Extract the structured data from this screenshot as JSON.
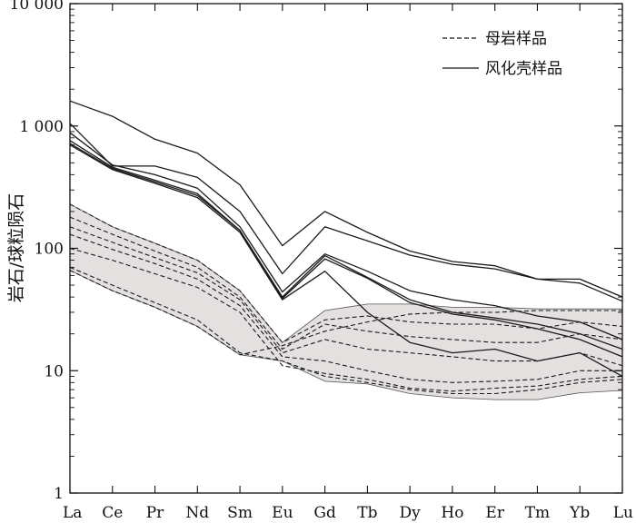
{
  "chart_data": {
    "type": "line",
    "ylabel": "岩石/球粒陨石",
    "xlabel": "",
    "y_scale": "log",
    "ylim": [
      1,
      10000
    ],
    "y_ticks": [
      {
        "value": 1,
        "label": "1"
      },
      {
        "value": 10,
        "label": "10"
      },
      {
        "value": 100,
        "label": "100"
      },
      {
        "value": 1000,
        "label": "1 000"
      },
      {
        "value": 10000,
        "label": "10 000"
      }
    ],
    "categories": [
      "La",
      "Ce",
      "Pr",
      "Nd",
      "Sm",
      "Eu",
      "Gd",
      "Tb",
      "Dy",
      "Ho",
      "Er",
      "Tm",
      "Yb",
      "Lu"
    ],
    "legend": {
      "position": "top-right",
      "entries": [
        {
          "label": "母岩样品",
          "style": "dashed"
        },
        {
          "label": "风化壳样品",
          "style": "solid"
        }
      ]
    },
    "colors": {
      "line": "#1a1a1a",
      "band": "#e4e0e0",
      "band_edge": "#555555"
    },
    "band": {
      "upper": [
        230,
        150,
        110,
        80,
        45,
        17,
        31,
        35,
        35,
        33,
        33,
        32,
        32,
        32
      ],
      "lower": [
        66,
        45,
        33,
        23,
        13.5,
        12,
        8.2,
        7.8,
        6.5,
        6.0,
        5.8,
        5.8,
        6.6,
        6.9
      ]
    },
    "series": [
      {
        "group": "weathered",
        "values": [
          1600,
          1200,
          780,
          600,
          330,
          105,
          200,
          135,
          95,
          78,
          72,
          56,
          56,
          40
        ]
      },
      {
        "group": "weathered",
        "values": [
          1050,
          470,
          470,
          380,
          200,
          62,
          150,
          115,
          88,
          74,
          68,
          56,
          52,
          37
        ]
      },
      {
        "group": "weathered",
        "values": [
          880,
          480,
          400,
          310,
          150,
          44,
          90,
          65,
          45,
          38,
          34,
          28,
          25,
          18
        ]
      },
      {
        "group": "weathered",
        "values": [
          760,
          460,
          360,
          280,
          140,
          40,
          87,
          58,
          38,
          30,
          27,
          24,
          20,
          15
        ]
      },
      {
        "group": "weathered",
        "values": [
          720,
          450,
          350,
          270,
          140,
          39,
          82,
          57,
          36,
          29,
          26,
          22,
          18,
          13
        ]
      },
      {
        "group": "weathered",
        "values": [
          700,
          440,
          340,
          260,
          135,
          38,
          65,
          30,
          17,
          14,
          15,
          12,
          14,
          9
        ]
      },
      {
        "group": "parent",
        "values": [
          230,
          150,
          110,
          80,
          45,
          17,
          26,
          28,
          25,
          24,
          24,
          22,
          25,
          23
        ]
      },
      {
        "group": "parent",
        "values": [
          180,
          130,
          95,
          70,
          40,
          15,
          24,
          21,
          19,
          18,
          17,
          17,
          20,
          18
        ]
      },
      {
        "group": "parent",
        "values": [
          150,
          112,
          84,
          63,
          38,
          14,
          18,
          15,
          14,
          13,
          12,
          12,
          14,
          11
        ]
      },
      {
        "group": "parent",
        "values": [
          130,
          98,
          75,
          56,
          34,
          13,
          12,
          10,
          8.5,
          8.0,
          8.2,
          8.5,
          10,
          10
        ]
      },
      {
        "group": "parent",
        "values": [
          100,
          80,
          62,
          48,
          30,
          11,
          9.5,
          8.5,
          7.2,
          6.8,
          7.2,
          7.5,
          8.5,
          9
        ]
      },
      {
        "group": "parent",
        "values": [
          66,
          45,
          33,
          23,
          13.5,
          16,
          21,
          25,
          29,
          30,
          30,
          31,
          31,
          31
        ]
      },
      {
        "group": "parent",
        "values": [
          70,
          50,
          36,
          26,
          14,
          12,
          9,
          8,
          7,
          6.5,
          6.5,
          7,
          8,
          8.5
        ]
      }
    ]
  }
}
